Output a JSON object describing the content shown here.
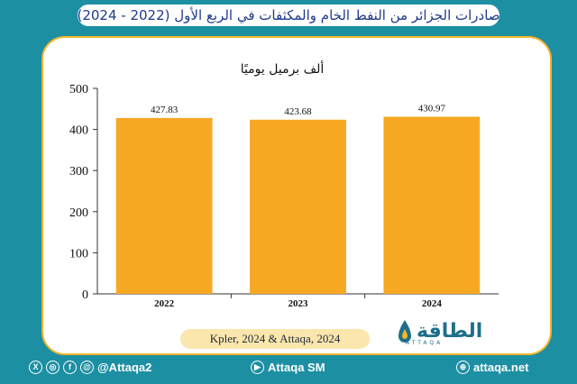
{
  "header": {
    "title": "صادرات الجزائر من النفط الخام والمكثفات في الربع الأول (2022 - 2024)"
  },
  "chart_data": {
    "type": "bar",
    "title": "ألف برميل يوميًا",
    "categories": [
      "2022",
      "2023",
      "2024"
    ],
    "values": [
      427.83,
      423.68,
      430.97
    ],
    "data_labels": [
      "427.83",
      "423.68",
      "430.97"
    ],
    "ylim": [
      0,
      500
    ],
    "yticks": [
      0,
      100,
      200,
      300,
      400,
      500
    ],
    "bar_color": "#f7a823",
    "grid": false,
    "legend": "none"
  },
  "source": {
    "text": "Kpler, 2024 & Attaqa, 2024"
  },
  "logo": {
    "main": "الطاقة",
    "sub": "ATTAQA"
  },
  "footer": {
    "social_handle": "@Attaqa2",
    "youtube_label": "Attaqa SM",
    "website": "attaqa.net"
  },
  "colors": {
    "background": "#1d8fa3",
    "accent": "#f5b62a",
    "title_text": "#1f3a8a"
  }
}
